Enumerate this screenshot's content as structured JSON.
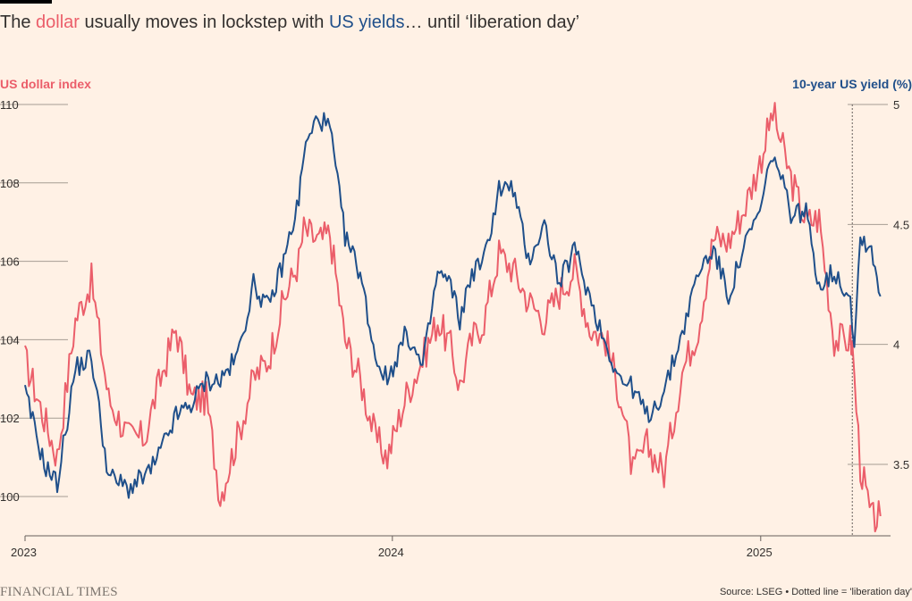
{
  "header": {
    "title_pre": "The ",
    "title_dollar": "dollar",
    "title_mid": " usually moves in lockstep with ",
    "title_yields": "US yields",
    "title_post": "… until ‘liberation day’"
  },
  "footer": {
    "logo": "FINANCIAL TIMES",
    "source": "Source: LSEG • Dotted line = 'liberation day'"
  },
  "colors": {
    "dollar": "#eb5e6a",
    "yield": "#1f4f8a",
    "background": "#fff1e5"
  },
  "chart_data": {
    "type": "line",
    "title": "The dollar usually moves in lockstep with US yields… until ‘liberation day’",
    "left_axis": {
      "label": "US dollar index",
      "ticks": [
        "100",
        "102",
        "104",
        "106",
        "108",
        "110"
      ],
      "ylim": [
        99,
        110
      ]
    },
    "right_axis": {
      "label": "10-year US yield (%)",
      "ticks": [
        "3.5",
        "4",
        "4.5",
        "5"
      ],
      "ylim": [
        3.3,
        5
      ]
    },
    "x_ticks": [
      "2023",
      "2024",
      "2025"
    ],
    "xlim": [
      "2023-01-01",
      "2025-05-10"
    ],
    "annotation": {
      "date": "2025-04-02",
      "note": "liberation day"
    },
    "series": [
      {
        "name": "dollar",
        "axis": "left",
        "x": [
          "2023-01-01",
          "2023-01-20",
          "2023-02-02",
          "2023-02-20",
          "2023-03-08",
          "2023-03-25",
          "2023-04-14",
          "2023-04-30",
          "2023-05-10",
          "2023-05-31",
          "2023-06-15",
          "2023-06-30",
          "2023-07-14",
          "2023-07-31",
          "2023-08-16",
          "2023-08-31",
          "2023-09-15",
          "2023-09-30",
          "2023-10-05",
          "2023-10-20",
          "2023-10-31",
          "2023-11-15",
          "2023-11-30",
          "2023-12-15",
          "2023-12-27",
          "2024-01-15",
          "2024-01-31",
          "2024-02-15",
          "2024-02-28",
          "2024-03-08",
          "2024-03-20",
          "2024-04-01",
          "2024-04-16",
          "2024-04-30",
          "2024-05-15",
          "2024-05-31",
          "2024-06-15",
          "2024-06-30",
          "2024-07-15",
          "2024-07-31",
          "2024-08-15",
          "2024-08-27",
          "2024-09-10",
          "2024-09-27",
          "2024-10-15",
          "2024-10-31",
          "2024-11-15",
          "2024-11-30",
          "2024-12-15",
          "2024-12-31",
          "2025-01-13",
          "2025-01-31",
          "2025-02-15",
          "2025-02-28",
          "2025-03-15",
          "2025-03-31",
          "2025-04-02",
          "2025-04-10",
          "2025-04-21",
          "2025-04-30"
        ],
        "values": [
          103.5,
          102.0,
          101.0,
          104.5,
          105.5,
          102.5,
          101.5,
          101.5,
          102.5,
          104.3,
          102.5,
          102.5,
          100.0,
          101.5,
          103.0,
          103.5,
          105.0,
          106.0,
          106.8,
          106.5,
          106.7,
          104.0,
          103.0,
          101.5,
          101.0,
          102.6,
          103.5,
          104.5,
          103.8,
          102.8,
          104.0,
          104.5,
          106.2,
          105.8,
          105.0,
          104.5,
          105.2,
          105.8,
          104.3,
          104.0,
          102.5,
          100.6,
          101.3,
          100.6,
          103.2,
          104.3,
          106.6,
          106.5,
          107.3,
          108.5,
          109.8,
          108.1,
          107.0,
          107.1,
          104.0,
          104.0,
          103.8,
          100.8,
          99.4,
          99.5
        ]
      },
      {
        "name": "yield",
        "axis": "right",
        "x": [
          "2023-01-01",
          "2023-01-20",
          "2023-02-02",
          "2023-02-20",
          "2023-03-08",
          "2023-03-25",
          "2023-04-14",
          "2023-04-30",
          "2023-05-10",
          "2023-05-31",
          "2023-06-15",
          "2023-06-30",
          "2023-07-14",
          "2023-07-31",
          "2023-08-16",
          "2023-08-31",
          "2023-09-15",
          "2023-09-30",
          "2023-10-05",
          "2023-10-19",
          "2023-10-31",
          "2023-11-15",
          "2023-11-30",
          "2023-12-15",
          "2023-12-27",
          "2024-01-15",
          "2024-01-31",
          "2024-02-15",
          "2024-02-28",
          "2024-03-08",
          "2024-03-20",
          "2024-04-01",
          "2024-04-16",
          "2024-04-30",
          "2024-05-15",
          "2024-05-31",
          "2024-06-15",
          "2024-06-30",
          "2024-07-15",
          "2024-07-31",
          "2024-08-15",
          "2024-08-27",
          "2024-09-10",
          "2024-09-27",
          "2024-10-15",
          "2024-10-31",
          "2024-11-15",
          "2024-11-30",
          "2024-12-15",
          "2024-12-31",
          "2025-01-13",
          "2025-01-31",
          "2025-02-15",
          "2025-02-28",
          "2025-03-15",
          "2025-03-31",
          "2025-04-04",
          "2025-04-10",
          "2025-04-21",
          "2025-04-30"
        ],
        "values": [
          3.8,
          3.5,
          3.42,
          3.9,
          3.95,
          3.45,
          3.4,
          3.45,
          3.5,
          3.7,
          3.75,
          3.85,
          3.85,
          3.95,
          4.25,
          4.15,
          4.35,
          4.6,
          4.8,
          4.95,
          4.9,
          4.45,
          4.3,
          3.95,
          3.85,
          4.05,
          3.9,
          4.3,
          4.25,
          4.1,
          4.3,
          4.35,
          4.65,
          4.65,
          4.35,
          4.5,
          4.25,
          4.4,
          4.2,
          4.0,
          3.85,
          3.82,
          3.7,
          3.8,
          4.05,
          4.3,
          4.4,
          4.2,
          4.4,
          4.55,
          4.8,
          4.55,
          4.55,
          4.25,
          4.3,
          4.2,
          4.0,
          4.45,
          4.4,
          4.2
        ]
      }
    ]
  }
}
